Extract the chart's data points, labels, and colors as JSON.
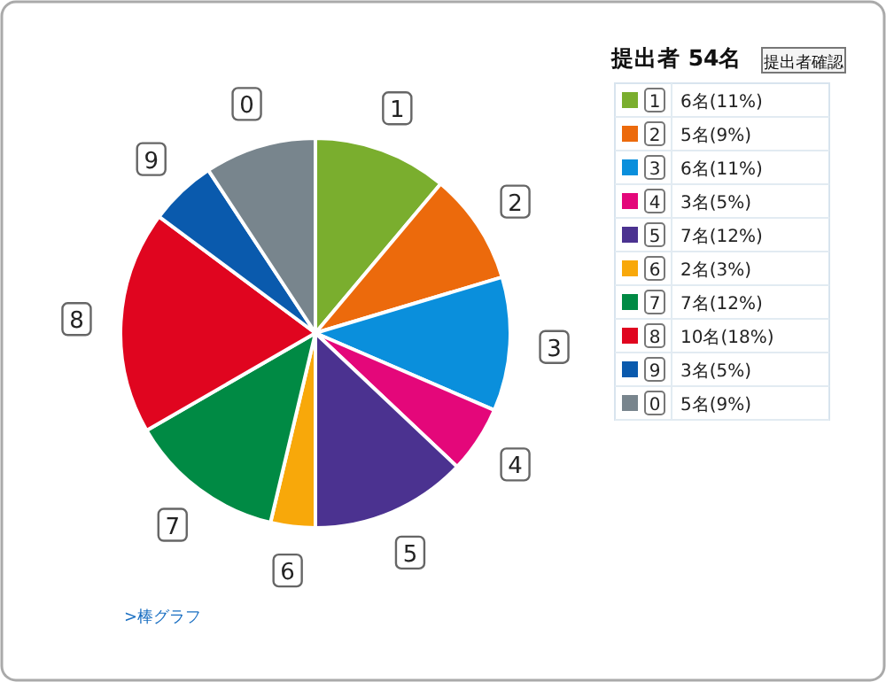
{
  "chart_data": {
    "type": "pie",
    "title": "提出者 54名",
    "categories": [
      "1",
      "2",
      "3",
      "4",
      "5",
      "6",
      "7",
      "8",
      "9",
      "0"
    ],
    "values": [
      6,
      5,
      6,
      3,
      7,
      2,
      7,
      10,
      3,
      5
    ],
    "value_labels": [
      "6名(11%)",
      "5名(9%)",
      "6名(11%)",
      "3名(5%)",
      "7名(12%)",
      "2名(3%)",
      "7名(12%)",
      "10名(18%)",
      "3名(5%)",
      "5名(9%)"
    ],
    "colors": [
      "#7aae2e",
      "#ec6a0c",
      "#0a8fdc",
      "#e4077a",
      "#4b3290",
      "#f8a80a",
      "#008a44",
      "#e0051f",
      "#0a5aad",
      "#78858d"
    ],
    "legend": "right",
    "annotations": [
      "提出者確認",
      ">棒グラフ"
    ]
  }
}
